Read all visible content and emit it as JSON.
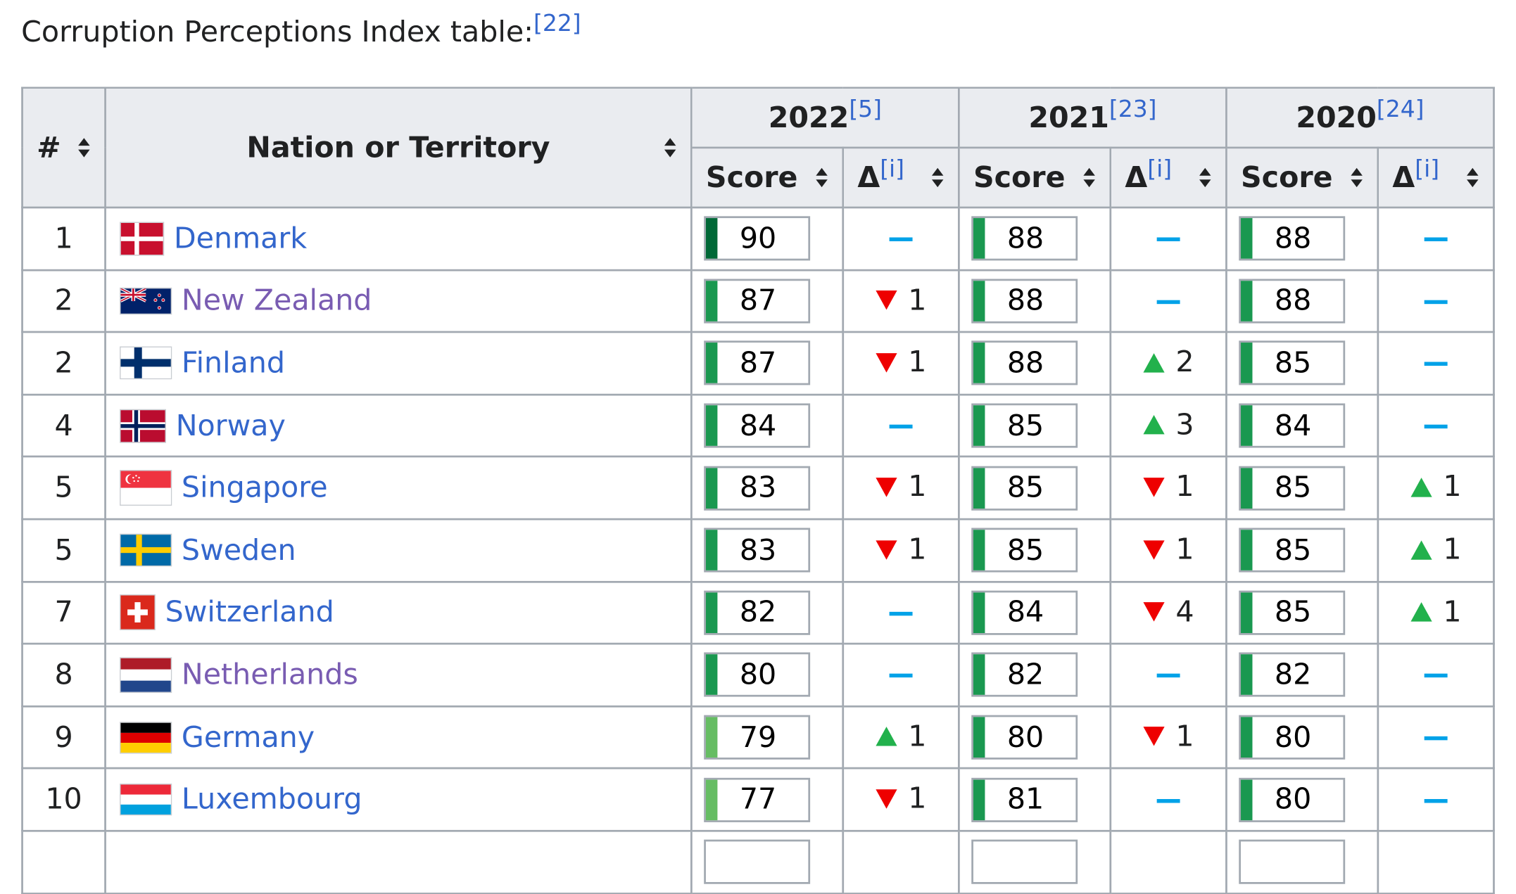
{
  "caption": {
    "text": "Corruption Perceptions Index table:",
    "ref": "[22]"
  },
  "columns": {
    "rank": "#",
    "nation": "Nation or Territory",
    "score": "Score",
    "delta": "Δ",
    "delta_ref": "[i]",
    "years": [
      {
        "year": "2022",
        "ref": "[5]"
      },
      {
        "year": "2021",
        "ref": "[23]"
      },
      {
        "year": "2020",
        "ref": "[24]"
      }
    ]
  },
  "colors": {
    "score_dark": "#006837",
    "score_mid": "#1a9850",
    "score_light": "#66bd63",
    "up": "#22b14c",
    "down": "#ee0000",
    "nochange": "#00a2e8",
    "link": "#3366cc",
    "visited": "#795cb2"
  },
  "rows": [
    {
      "rank": "1",
      "nation": "Denmark",
      "flag": "denmark-flag",
      "visited": false,
      "cells": [
        {
          "score": "90",
          "shade": "dark",
          "dir": "none",
          "delta": ""
        },
        {
          "score": "88",
          "shade": "mid",
          "dir": "none",
          "delta": ""
        },
        {
          "score": "88",
          "shade": "mid",
          "dir": "none",
          "delta": ""
        }
      ]
    },
    {
      "rank": "2",
      "nation": "New Zealand",
      "flag": "new-zealand-flag",
      "visited": true,
      "cells": [
        {
          "score": "87",
          "shade": "mid",
          "dir": "down",
          "delta": "1"
        },
        {
          "score": "88",
          "shade": "mid",
          "dir": "none",
          "delta": ""
        },
        {
          "score": "88",
          "shade": "mid",
          "dir": "none",
          "delta": ""
        }
      ]
    },
    {
      "rank": "2",
      "nation": "Finland",
      "flag": "finland-flag",
      "visited": false,
      "cells": [
        {
          "score": "87",
          "shade": "mid",
          "dir": "down",
          "delta": "1"
        },
        {
          "score": "88",
          "shade": "mid",
          "dir": "up",
          "delta": "2"
        },
        {
          "score": "85",
          "shade": "mid",
          "dir": "none",
          "delta": ""
        }
      ]
    },
    {
      "rank": "4",
      "nation": "Norway",
      "flag": "norway-flag",
      "visited": false,
      "cells": [
        {
          "score": "84",
          "shade": "mid",
          "dir": "none",
          "delta": ""
        },
        {
          "score": "85",
          "shade": "mid",
          "dir": "up",
          "delta": "3"
        },
        {
          "score": "84",
          "shade": "mid",
          "dir": "none",
          "delta": ""
        }
      ]
    },
    {
      "rank": "5",
      "nation": "Singapore",
      "flag": "singapore-flag",
      "visited": false,
      "cells": [
        {
          "score": "83",
          "shade": "mid",
          "dir": "down",
          "delta": "1"
        },
        {
          "score": "85",
          "shade": "mid",
          "dir": "down",
          "delta": "1"
        },
        {
          "score": "85",
          "shade": "mid",
          "dir": "up",
          "delta": "1"
        }
      ]
    },
    {
      "rank": "5",
      "nation": "Sweden",
      "flag": "sweden-flag",
      "visited": false,
      "cells": [
        {
          "score": "83",
          "shade": "mid",
          "dir": "down",
          "delta": "1"
        },
        {
          "score": "85",
          "shade": "mid",
          "dir": "down",
          "delta": "1"
        },
        {
          "score": "85",
          "shade": "mid",
          "dir": "up",
          "delta": "1"
        }
      ]
    },
    {
      "rank": "7",
      "nation": "Switzerland",
      "flag": "switzerland-flag",
      "visited": false,
      "cells": [
        {
          "score": "82",
          "shade": "mid",
          "dir": "none",
          "delta": ""
        },
        {
          "score": "84",
          "shade": "mid",
          "dir": "down",
          "delta": "4"
        },
        {
          "score": "85",
          "shade": "mid",
          "dir": "up",
          "delta": "1"
        }
      ]
    },
    {
      "rank": "8",
      "nation": "Netherlands",
      "flag": "netherlands-flag",
      "visited": true,
      "cells": [
        {
          "score": "80",
          "shade": "mid",
          "dir": "none",
          "delta": ""
        },
        {
          "score": "82",
          "shade": "mid",
          "dir": "none",
          "delta": ""
        },
        {
          "score": "82",
          "shade": "mid",
          "dir": "none",
          "delta": ""
        }
      ]
    },
    {
      "rank": "9",
      "nation": "Germany",
      "flag": "germany-flag",
      "visited": false,
      "cells": [
        {
          "score": "79",
          "shade": "light",
          "dir": "up",
          "delta": "1"
        },
        {
          "score": "80",
          "shade": "mid",
          "dir": "down",
          "delta": "1"
        },
        {
          "score": "80",
          "shade": "mid",
          "dir": "none",
          "delta": ""
        }
      ]
    },
    {
      "rank": "10",
      "nation": "Luxembourg",
      "flag": "luxembourg-flag",
      "visited": false,
      "cells": [
        {
          "score": "77",
          "shade": "light",
          "dir": "down",
          "delta": "1"
        },
        {
          "score": "81",
          "shade": "mid",
          "dir": "none",
          "delta": ""
        },
        {
          "score": "80",
          "shade": "mid",
          "dir": "none",
          "delta": ""
        }
      ]
    }
  ]
}
